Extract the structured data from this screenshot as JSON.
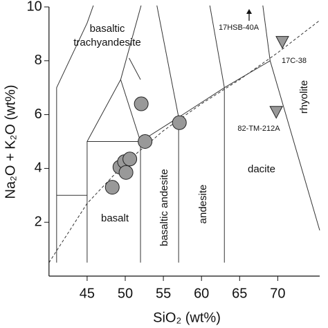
{
  "chart_data": {
    "type": "scatter",
    "x_label": "SiO₂ (wt%)",
    "y_label": "Na₂O + K₂O (wt%)",
    "xlim": [
      40,
      75.5
    ],
    "ylim": [
      0,
      10
    ],
    "xticks": [
      45,
      50,
      55,
      60,
      65,
      70
    ],
    "yticks": [
      2,
      4,
      6,
      8,
      10
    ],
    "series": [
      {
        "marker": "circle",
        "color": "#999999",
        "x": [
          52.1,
          57.1,
          52.6,
          49.3,
          49.9,
          50.6,
          50.1,
          48.3
        ],
        "values": [
          6.4,
          5.7,
          5.0,
          4.05,
          4.25,
          4.35,
          3.85,
          3.3
        ]
      },
      {
        "marker": "triangle",
        "color": "#999999",
        "x": [
          70.6,
          69.8
        ],
        "values": [
          8.7,
          6.1
        ]
      }
    ],
    "sample_labels": [
      "17HSB-40A",
      "17C-38",
      "82-TM-212A"
    ],
    "field_labels": [
      "basaltic",
      "trachyandesite",
      "basalt",
      "basaltic andesite",
      "andesite",
      "dacite",
      "rhyolite"
    ]
  }
}
